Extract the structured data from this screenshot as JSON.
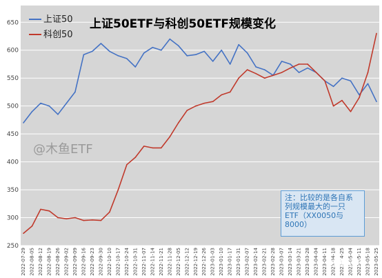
{
  "chart_data": {
    "type": "line",
    "title": "上证50ETF与科创50ETF规模变化",
    "ylim": [
      250,
      680
    ],
    "yticks": [
      250,
      300,
      350,
      400,
      450,
      500,
      550,
      600,
      650
    ],
    "x": [
      "2022-07-29",
      "2022-08-05",
      "2022-08-12",
      "2022-08-19",
      "2022-08-26",
      "2022-09-02",
      "2022-09-09",
      "2022-09-16",
      "2022-09-23",
      "2022-09-30",
      "2022-10-14",
      "2022-10-21",
      "2022-10-28",
      "2022-11-04",
      "2022-11-11",
      "2022-11-18",
      "2022-11-25",
      "2022-12-02",
      "2022-12-09",
      "2022-12-16",
      "2022-12-23",
      "2022-12-30",
      "2023-01-06",
      "2023-01-13",
      "2023-01-20",
      "2023-02-03",
      "2023-02-10",
      "2023-02-17",
      "2023-02-24",
      "2023-03-03",
      "2023-03-10",
      "2023-03-17",
      "2023-03-24",
      "2023-03-31",
      "2023-04-07",
      "2023-04-14",
      "2023-04-21",
      "2023-04-28",
      "2023-05-05",
      "2023-05-12",
      "2023-05-19",
      "2023-05-26"
    ],
    "xticks": [
      "2022-07-29",
      "2022-08-05",
      "2022-08-12",
      "2022-08-19",
      "2022-08-26",
      "2022-09-02",
      "2022-09-09",
      "2022-09-16",
      "2022-09-23",
      "2022-09-30",
      "2022-10-10",
      "2022-10-17",
      "2022-10-24",
      "2022-10-31",
      "2022-11-07",
      "2022-11-14",
      "2022-11-21",
      "2022-11-28",
      "2022-12-05",
      "2022-12-12",
      "2022-12-19",
      "2022-12-26",
      "2023-01-03",
      "2023-01-10",
      "2023-01-17",
      "2023-01-31",
      "2023-02-07",
      "2023-02-14",
      "2023-02-21",
      "2023-02-28",
      "2023-03-07",
      "2023-03-14",
      "2023-03-21",
      "2023-03-28",
      "2023-04-04",
      "2023-04-11",
      "2023-04-18",
      "2023-04-25",
      "2023-05-04",
      "2023-05-11",
      "2023-05-18",
      "2023-05-25"
    ],
    "series": [
      {
        "name": "上证50",
        "color": "#4472c4",
        "values": [
          470,
          490,
          505,
          500,
          485,
          505,
          525,
          592,
          598,
          612,
          598,
          590,
          585,
          570,
          595,
          605,
          600,
          620,
          608,
          590,
          592,
          598,
          580,
          600,
          575,
          610,
          595,
          570,
          565,
          555,
          580,
          575,
          560,
          568,
          560,
          545,
          535,
          550,
          545,
          520,
          540,
          508
        ]
      },
      {
        "name": "科创50",
        "color": "#c0392b",
        "values": [
          272,
          285,
          315,
          312,
          300,
          298,
          300,
          295,
          296,
          295,
          310,
          350,
          395,
          408,
          428,
          425,
          425,
          445,
          470,
          492,
          500,
          505,
          508,
          520,
          525,
          550,
          565,
          558,
          550,
          555,
          560,
          568,
          575,
          575,
          560,
          545,
          500,
          510,
          490,
          515,
          560,
          630
        ]
      }
    ],
    "legend_position": "top-left",
    "grid": true
  },
  "watermark": "@木鱼ETF",
  "note": {
    "lines": [
      "注：比较的是各自系",
      "列规模最大的一只",
      "ETF（XX0050与",
      "8000）"
    ]
  },
  "footer_watermark": "木鱼ETF"
}
